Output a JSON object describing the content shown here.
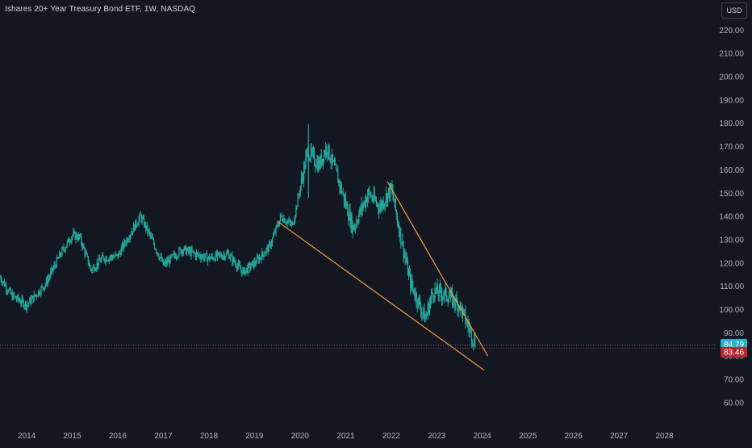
{
  "header": {
    "title": "Ishares 20+ Year Treasury Bond ETF, 1W, NASDAQ",
    "currency": "USD"
  },
  "colors": {
    "background": "#131722",
    "candle": "#26a69a",
    "trendline": "#f39c3d",
    "last_price_badge": "#22b5cf",
    "prev_close_badge": "#b22833",
    "prev_close_line": "#b22833",
    "last_price_line": "#5b6b7a",
    "axis_text": "#b2b5be"
  },
  "chart_data": {
    "type": "candlestick",
    "xlim": [
      "2013-06-01",
      "2028-12-31"
    ],
    "ylim": [
      52,
      226
    ],
    "y_ticks": [
      "220.00",
      "210.00",
      "200.00",
      "190.00",
      "180.00",
      "170.00",
      "160.00",
      "150.00",
      "140.00",
      "130.00",
      "120.00",
      "110.00",
      "100.00",
      "90.00",
      "80.00",
      "70.00",
      "60.00"
    ],
    "x_ticks": [
      "2014",
      "2015",
      "2016",
      "2017",
      "2018",
      "2019",
      "2020",
      "2021",
      "2022",
      "2023",
      "2024",
      "2025",
      "2026",
      "2027",
      "2028"
    ],
    "price_series": {
      "x": [
        "2013-06-01",
        "2013-09-01",
        "2014-01-01",
        "2014-06-01",
        "2014-10-01",
        "2015-01-01",
        "2015-03-01",
        "2015-06-01",
        "2015-09-01",
        "2016-01-01",
        "2016-04-01",
        "2016-07-01",
        "2016-10-01",
        "2017-01-01",
        "2017-06-01",
        "2017-09-01",
        "2018-01-01",
        "2018-06-01",
        "2018-10-01",
        "2019-01-01",
        "2019-05-01",
        "2019-08-01",
        "2019-11-01",
        "2020-03-01",
        "2020-06-01",
        "2020-08-01",
        "2020-11-01",
        "2021-03-01",
        "2021-07-01",
        "2021-10-01",
        "2022-01-01",
        "2022-03-01",
        "2022-06-01",
        "2022-10-01",
        "2022-12-01",
        "2023-04-01",
        "2023-07-01",
        "2023-10-01",
        "2023-11-10"
      ],
      "close": [
        114,
        106,
        102,
        111,
        124,
        132,
        131,
        117,
        122,
        123,
        132,
        140,
        130,
        119,
        126,
        124,
        122,
        124,
        116,
        120,
        127,
        140,
        136,
        168,
        162,
        170,
        156,
        135,
        150,
        144,
        152,
        136,
        112,
        96,
        108,
        106,
        102,
        90,
        84.79
      ]
    },
    "last_price": "84.79",
    "prev_close": "83.46",
    "trendlines": [
      {
        "from": {
          "x": "2019-07-01",
          "y": 138
        },
        "to": {
          "x": "2024-01-15",
          "y": 74
        }
      },
      {
        "from": {
          "x": "2021-12-01",
          "y": 155
        },
        "to": {
          "x": "2024-02-15",
          "y": 80
        }
      }
    ]
  }
}
